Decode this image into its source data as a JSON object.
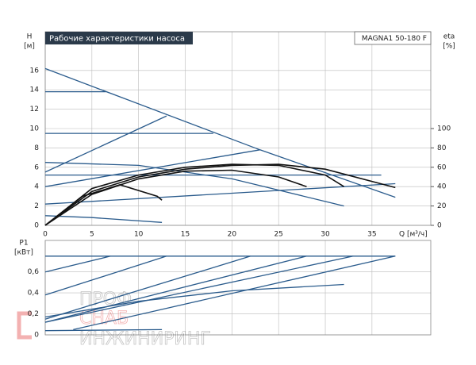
{
  "chart_data": [
    {
      "type": "line",
      "title": "Рабочие характеристики насоса",
      "model": "MAGNA1 50-180 F",
      "ylabel": "H",
      "yunit": "[м]",
      "y2label": "eta",
      "y2unit": "[%]",
      "xlabel": "Q [м³/ч]",
      "xlim": [
        0,
        41.3
      ],
      "xticks": [
        0,
        5,
        10,
        15,
        20,
        25,
        30,
        35
      ],
      "ylim": [
        0,
        20
      ],
      "yticks": [
        0,
        2,
        4,
        6,
        8,
        10,
        12,
        14,
        16
      ],
      "y2lim": [
        0,
        200
      ],
      "y2ticks": [
        0,
        20,
        40,
        60,
        80,
        100
      ],
      "grid": true,
      "series": [
        {
          "color": "#2a5b8c",
          "x": [
            0,
            23,
            37.5
          ],
          "values": [
            16.2,
            7.8,
            2.9
          ]
        },
        {
          "color": "#2a5b8c",
          "x": [
            0,
            6.5
          ],
          "values": [
            13.8,
            13.8
          ]
        },
        {
          "color": "#2a5b8c",
          "x": [
            0,
            18
          ],
          "values": [
            9.5,
            9.5
          ]
        },
        {
          "color": "#2a5b8c",
          "x": [
            0,
            13
          ],
          "values": [
            5.5,
            11.3
          ]
        },
        {
          "color": "#2a5b8c",
          "x": [
            0,
            23
          ],
          "values": [
            4,
            7.8
          ]
        },
        {
          "color": "#2a5b8c",
          "x": [
            0,
            37.5
          ],
          "values": [
            2.2,
            4.3
          ]
        },
        {
          "color": "#2a5b8c",
          "x": [
            0,
            10,
            20,
            32
          ],
          "values": [
            6.5,
            6.2,
            4.8,
            2.0
          ]
        },
        {
          "color": "#2a5b8c",
          "x": [
            0,
            36
          ],
          "values": [
            5.2,
            5.2
          ]
        },
        {
          "color": "#2a5b8c",
          "x": [
            0,
            5,
            12.5
          ],
          "values": [
            1,
            0.8,
            0.3
          ]
        },
        {
          "color": "#111111",
          "axis": "y2",
          "x": [
            0,
            5,
            10,
            15,
            20,
            25,
            30,
            37.5
          ],
          "values": [
            0,
            35,
            50,
            58,
            62,
            63,
            58,
            39
          ]
        },
        {
          "color": "#111111",
          "axis": "y2",
          "x": [
            0,
            5,
            10,
            15,
            20,
            25,
            30,
            32
          ],
          "values": [
            0,
            38,
            52,
            60,
            63,
            62,
            52,
            40
          ]
        },
        {
          "color": "#111111",
          "axis": "y2",
          "x": [
            0,
            4,
            8,
            12,
            12.5
          ],
          "values": [
            0,
            30,
            42,
            30,
            26
          ]
        },
        {
          "color": "#111111",
          "axis": "y2",
          "x": [
            0,
            5,
            10,
            15,
            20,
            25,
            28
          ],
          "values": [
            0,
            32,
            48,
            56,
            57,
            50,
            40
          ]
        }
      ]
    },
    {
      "type": "line",
      "ylabel": "P1",
      "yunit": "[кВт]",
      "xlim": [
        0,
        41.3
      ],
      "xticks": [
        0,
        5,
        10,
        15,
        20,
        25,
        30,
        35
      ],
      "ylim": [
        0,
        0.9
      ],
      "yticks": [
        0,
        {
          "value": 0.2,
          "label": "0,2"
        },
        {
          "value": 0.4,
          "label": "0,4"
        },
        {
          "value": 0.6,
          "label": "0,6"
        }
      ],
      "grid": true,
      "series": [
        {
          "color": "#2a5b8c",
          "x": [
            0,
            37.5
          ],
          "values": [
            0.75,
            0.75
          ]
        },
        {
          "color": "#2a5b8c",
          "x": [
            0,
            7
          ],
          "values": [
            0.6,
            0.75
          ]
        },
        {
          "color": "#2a5b8c",
          "x": [
            0,
            13
          ],
          "values": [
            0.38,
            0.75
          ]
        },
        {
          "color": "#2a5b8c",
          "x": [
            0,
            22
          ],
          "values": [
            0.15,
            0.75
          ]
        },
        {
          "color": "#2a5b8c",
          "x": [
            0,
            28
          ],
          "values": [
            0.12,
            0.75
          ]
        },
        {
          "color": "#2a5b8c",
          "x": [
            0,
            33
          ],
          "values": [
            0.12,
            0.75
          ]
        },
        {
          "color": "#2a5b8c",
          "x": [
            3,
            37.5
          ],
          "values": [
            0.05,
            0.75
          ]
        },
        {
          "color": "#2a5b8c",
          "x": [
            0,
            10,
            20,
            32
          ],
          "values": [
            0.17,
            0.32,
            0.42,
            0.48
          ]
        },
        {
          "color": "#2a5b8c",
          "x": [
            0,
            12.5
          ],
          "values": [
            0.04,
            0.05
          ]
        }
      ]
    }
  ],
  "watermark": {
    "line1": "ПРОФ",
    "line2": "СНАБ",
    "line3": "ИНЖИНИРИНГ"
  }
}
